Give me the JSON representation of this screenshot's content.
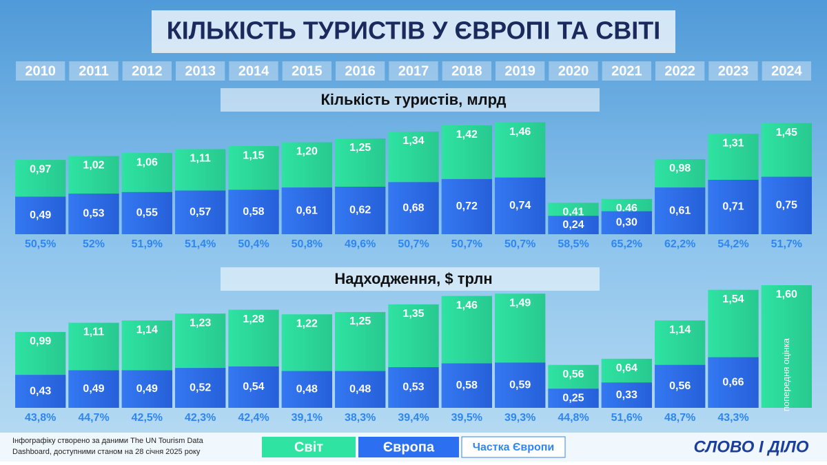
{
  "title": "КІЛЬКІСТЬ ТУРИСТІВ У ЄВРОПІ ТА СВІТІ",
  "source": [
    "Інфографіку створено за даними The UN Tourism Data",
    "Dashboard, доступними станом на 28 січня 2025 року"
  ],
  "brand": "СЛОВО І ДІЛО",
  "chart_data": [
    {
      "type": "bar",
      "title": "Кількість туристів, млрд",
      "categories": [
        "2010",
        "2011",
        "2012",
        "2013",
        "2014",
        "2015",
        "2016",
        "2017",
        "2018",
        "2019",
        "2020",
        "2021",
        "2022",
        "2023",
        "2024"
      ],
      "ylim": [
        0,
        1.6
      ],
      "series": [
        {
          "name": "Світ",
          "color": "#2fe3a2",
          "values": [
            0.97,
            1.02,
            1.06,
            1.11,
            1.15,
            1.2,
            1.25,
            1.34,
            1.42,
            1.46,
            0.41,
            0.46,
            0.98,
            1.31,
            1.45
          ],
          "value_labels": [
            "0,97",
            "1,02",
            "1,06",
            "1,11",
            "1,15",
            "1,20",
            "1,25",
            "1,34",
            "1,42",
            "1,46",
            "0,41",
            "0,46",
            "0,98",
            "1,31",
            "1,45"
          ]
        },
        {
          "name": "Європа",
          "color": "#2c6ff0",
          "values": [
            0.49,
            0.53,
            0.55,
            0.57,
            0.58,
            0.61,
            0.62,
            0.68,
            0.72,
            0.74,
            0.24,
            0.3,
            0.61,
            0.71,
            0.75
          ],
          "value_labels": [
            "0,49",
            "0,53",
            "0,55",
            "0,57",
            "0,58",
            "0,61",
            "0,62",
            "0,68",
            "0,72",
            "0,74",
            "0,24",
            "0,30",
            "0,61",
            "0,71",
            "0,75"
          ]
        },
        {
          "name": "Частка Європи",
          "color": "#2f86f0",
          "values": [
            50.5,
            52,
            51.9,
            51.4,
            50.4,
            50.8,
            49.6,
            50.7,
            50.7,
            50.7,
            58.5,
            65.2,
            62.2,
            54.2,
            51.7
          ],
          "value_labels": [
            "50,5%",
            "52%",
            "51,9%",
            "51,4%",
            "50,4%",
            "50,8%",
            "49,6%",
            "50,7%",
            "50,7%",
            "50,7%",
            "58,5%",
            "65,2%",
            "62,2%",
            "54,2%",
            "51,7%"
          ]
        }
      ]
    },
    {
      "type": "bar",
      "title": "Надходження, $ трлн",
      "ylim": [
        0,
        1.6
      ],
      "annotation": "попередня оцінка",
      "series": [
        {
          "color": "#2fe3a2",
          "values": [
            0.99,
            1.11,
            1.14,
            1.23,
            1.28,
            1.22,
            1.25,
            1.35,
            1.46,
            1.49,
            0.56,
            0.64,
            1.14,
            1.54,
            1.6
          ],
          "value_labels": [
            "0,99",
            "1,11",
            "1,14",
            "1,23",
            "1,28",
            "1,22",
            "1,25",
            "1,35",
            "1,46",
            "1,49",
            "0,56",
            "0,64",
            "1,14",
            "1,54",
            "1,60"
          ]
        },
        {
          "color": "#2c6ff0",
          "values": [
            0.43,
            0.49,
            0.49,
            0.52,
            0.54,
            0.48,
            0.48,
            0.53,
            0.58,
            0.59,
            0.25,
            0.33,
            0.56,
            0.66,
            null
          ],
          "value_labels": [
            "0,43",
            "0,49",
            "0,49",
            "0,52",
            "0,54",
            "0,48",
            "0,48",
            "0,53",
            "0,58",
            "0,59",
            "0,25",
            "0,33",
            "0,56",
            "0,66",
            null
          ]
        },
        {
          "color": "#2f86f0",
          "values": [
            43.8,
            44.7,
            42.5,
            42.3,
            42.4,
            39.1,
            38.3,
            39.4,
            39.5,
            39.3,
            44.8,
            51.6,
            48.7,
            43.3,
            null
          ],
          "value_labels": [
            "43,8%",
            "44,7%",
            "42,5%",
            "42,3%",
            "42,4%",
            "39,1%",
            "38,3%",
            "39,4%",
            "39,5%",
            "39,3%",
            "44,8%",
            "51,6%",
            "48,7%",
            "43,3%",
            null
          ]
        }
      ]
    }
  ]
}
